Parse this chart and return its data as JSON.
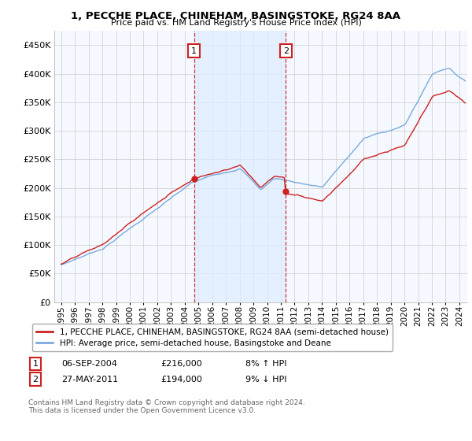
{
  "title": "1, PECCHE PLACE, CHINEHAM, BASINGSTOKE, RG24 8AA",
  "subtitle": "Price paid vs. HM Land Registry's House Price Index (HPI)",
  "legend_line1": "1, PECCHE PLACE, CHINEHAM, BASINGSTOKE, RG24 8AA (semi-detached house)",
  "legend_line2": "HPI: Average price, semi-detached house, Basingstoke and Deane",
  "transaction1_date": "06-SEP-2004",
  "transaction1_price": "£216,000",
  "transaction1_hpi": "8% ↑ HPI",
  "transaction1_year": 2004.67,
  "transaction1_value": 216000,
  "transaction2_date": "27-MAY-2011",
  "transaction2_price": "£194,000",
  "transaction2_hpi": "9% ↓ HPI",
  "transaction2_year": 2011.37,
  "transaction2_value": 194000,
  "footnote": "Contains HM Land Registry data © Crown copyright and database right 2024.\nThis data is licensed under the Open Government Licence v3.0.",
  "hpi_color": "#7aaadd",
  "price_color": "#cc2222",
  "shade_color": "#ddeeff",
  "background_color": "#f5f8ff",
  "ylim": [
    0,
    475000
  ],
  "yticks": [
    0,
    50000,
    100000,
    150000,
    200000,
    250000,
    300000,
    350000,
    400000,
    450000
  ]
}
